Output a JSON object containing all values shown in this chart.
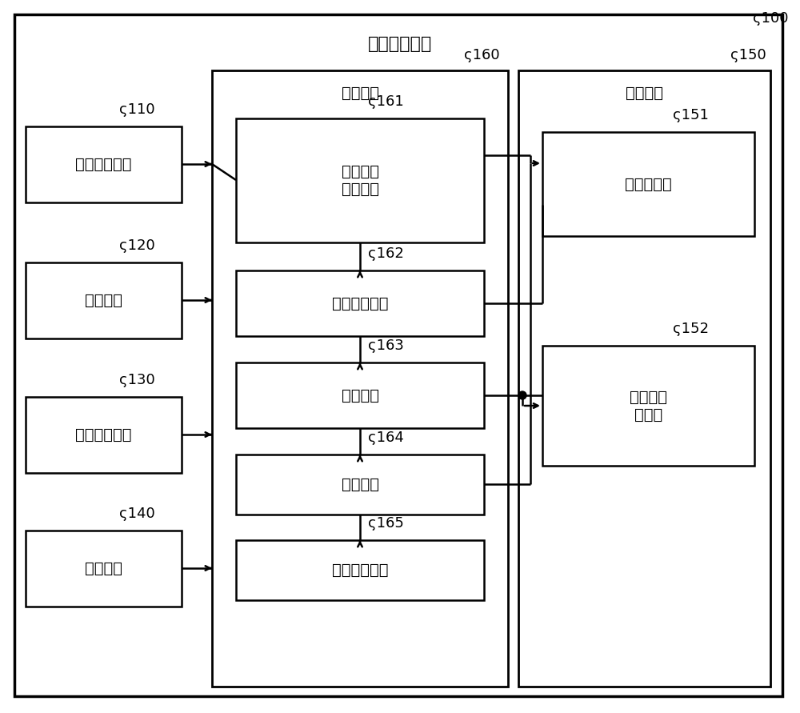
{
  "title": "定点支持装置",
  "label_100": "ς100",
  "label_160": "ς160",
  "label_150": "ς150",
  "label_110": "ς110",
  "label_120": "ς120",
  "label_130": "ς130",
  "label_140": "ς140",
  "label_161": "ς161",
  "label_162": "ς162",
  "label_163": "ς163",
  "label_164": "ς164",
  "label_165": "ς165",
  "label_151": "ς151",
  "label_152": "ς152",
  "text_160": "控制单元",
  "text_150": "存储单元",
  "text_110": "视线输入单元",
  "text_120": "输入单元",
  "text_130": "语音输入单元",
  "text_140": "显示单元",
  "text_161": "视线位置\n检测单元",
  "text_162": "命令提取单元",
  "text_163": "生成单元",
  "text_164": "决定单元",
  "text_165": "显示控制单元",
  "text_151": "命令字典表",
  "text_152": "命令字典\n缓存表",
  "bg_color": "#ffffff"
}
